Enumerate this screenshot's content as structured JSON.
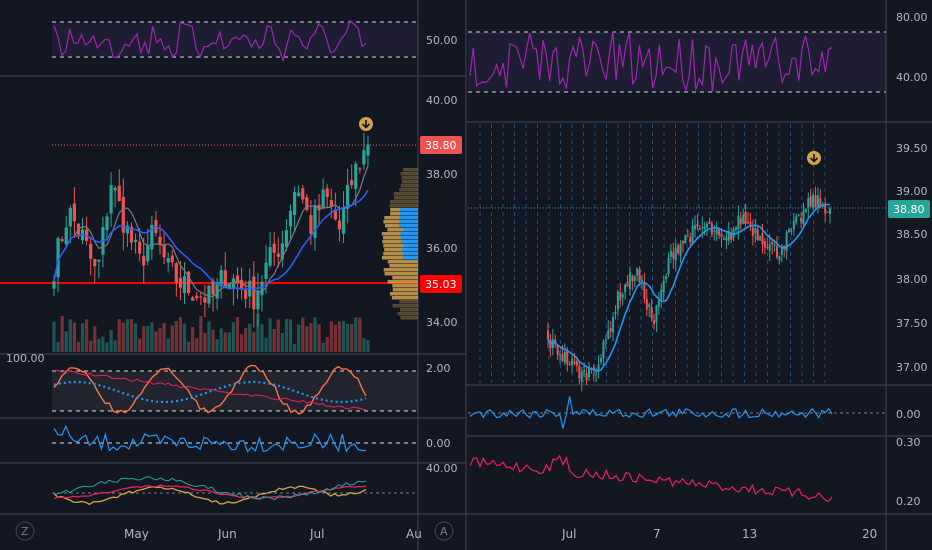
{
  "colors": {
    "background": "#131722",
    "grid": "#2a2e39",
    "axis_text": "#b2b5be",
    "up": "#26a69a",
    "down": "#ef5350",
    "rsi": "#9c27b0",
    "ma": "#2962ff",
    "price_label": "#ef5350",
    "price_label_right": "#26a69a",
    "support": "#ff0000",
    "profile_up": "#2196f3",
    "profile_down": "#d4a24c",
    "macd": "#2196f3",
    "stoch_k": "#ff7043",
    "stoch_d": "#2196f3",
    "cci": "#e91e63"
  },
  "left_panel": {
    "icon_label": "Z",
    "rsi_ticks": [
      "50.00"
    ],
    "price_ticks": [
      "40.00",
      "38.00",
      "36.00",
      "34.00"
    ],
    "last_price_label": "38.80",
    "support_label": "35.03",
    "stoch_ticks": [
      "100.00",
      "2.00"
    ],
    "macd_ticks": [
      "0.00"
    ],
    "bottom_ticks": [
      "40.00"
    ],
    "x_ticks": [
      "May",
      "Jun",
      "Jul",
      "Au"
    ]
  },
  "right_panel": {
    "icon_label": "A",
    "rsi_ticks": [
      "80.00",
      "40.00"
    ],
    "price_ticks": [
      "39.50",
      "39.00",
      "38.50",
      "38.00",
      "37.50",
      "37.00"
    ],
    "last_price_label": "38.80",
    "osc_ticks": [
      "0.00"
    ],
    "bottom_ticks": [
      "0.30",
      "0.20"
    ],
    "x_ticks": [
      "Jul",
      "7",
      "13",
      "20"
    ]
  },
  "chart_data": [
    {
      "type": "candlestick",
      "title": "",
      "xlabel": "",
      "ylabel": "",
      "ylim": [
        33.4,
        40.4
      ],
      "x_ticks": [
        "May",
        "Jun",
        "Jul",
        "Au"
      ],
      "y_ticks": [
        34.0,
        36.0,
        38.0,
        40.0
      ],
      "last_price": 38.8,
      "support_level": 35.03,
      "close_path": [
        35.5,
        37.0,
        36.3,
        35.2,
        37.8,
        36.6,
        35.6,
        36.4,
        35.4,
        35.0,
        34.8,
        34.6,
        35.3,
        35.0,
        34.7,
        35.6,
        36.2,
        37.8,
        36.6,
        37.4,
        36.5,
        38.0,
        38.8
      ],
      "grid": false,
      "legend": "none"
    },
    {
      "type": "candlestick",
      "title": "",
      "xlabel": "",
      "ylabel": "",
      "ylim": [
        36.8,
        39.9
      ],
      "x_ticks": [
        "Jul",
        "7",
        "13",
        "20"
      ],
      "y_ticks": [
        37.0,
        37.5,
        38.0,
        38.5,
        39.0,
        39.5
      ],
      "last_price": 38.8,
      "close_path": [
        37.3,
        37.1,
        36.9,
        37.1,
        37.8,
        38.1,
        37.5,
        38.3,
        38.5,
        38.6,
        38.4,
        38.7,
        38.5,
        38.3,
        38.6,
        38.9,
        38.8
      ],
      "grid": false,
      "legend": "none"
    }
  ]
}
